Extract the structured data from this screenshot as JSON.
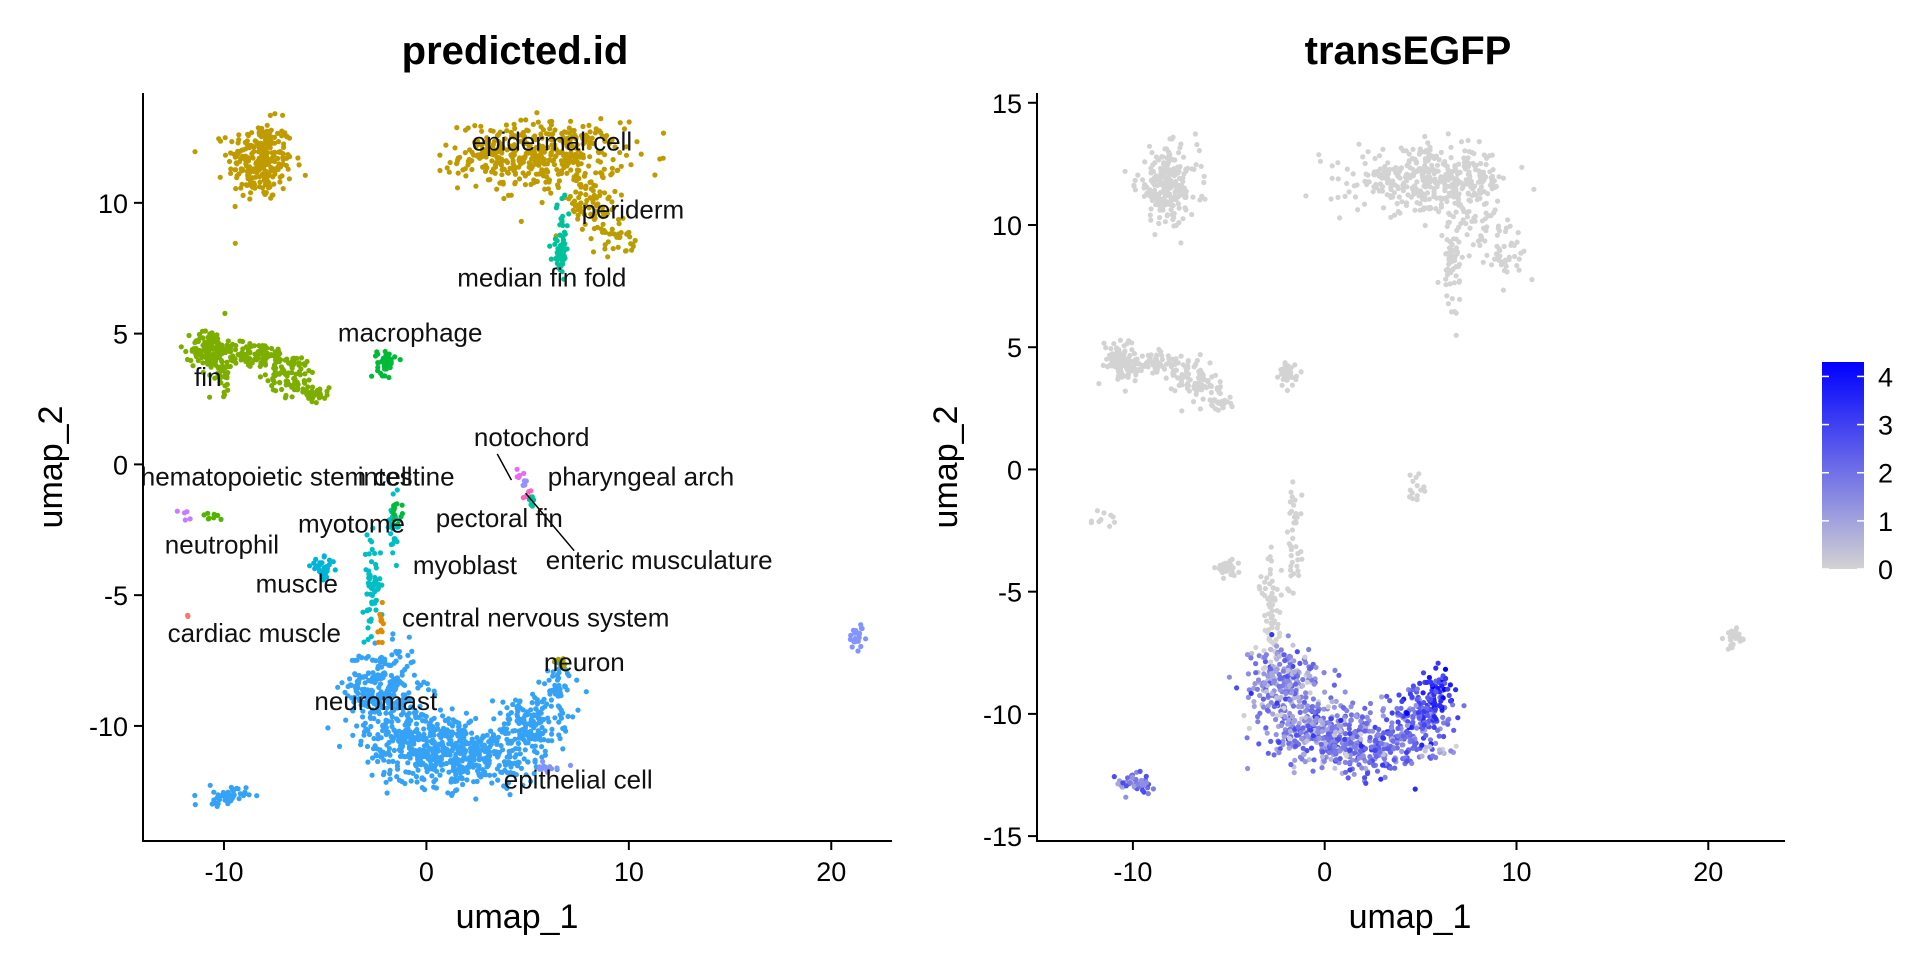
{
  "chart_data": [
    {
      "type": "scatter",
      "title": "predicted.id",
      "xlabel": "umap_1",
      "ylabel": "umap_2",
      "xlim": [
        -14,
        23
      ],
      "ylim": [
        -14.4,
        14.2
      ],
      "xticks": [
        -10,
        0,
        10,
        20
      ],
      "yticks": [
        -10,
        -5,
        0,
        5,
        10
      ],
      "legend": "none",
      "colors": {
        "epidermal": "#C09B00",
        "periderm": "#B79F00",
        "fin": "#7CAE00",
        "macrophage": "#00BA38",
        "median_fin_fold": "#00C19A",
        "myotome": "#00BFC4",
        "muscle": "#00B4D8",
        "myoblast": "#00A9FF",
        "neuromast": "#35A2F6",
        "epithelial": "#8494FF",
        "cardiac": "#F8766D",
        "hematopoietic": "#53B400",
        "neutrophil": "#C77CFF",
        "pharyngeal": "#E76BF3",
        "enteric": "#FF62BC",
        "cns": "#DE8C00",
        "neuron": "#A3A500",
        "notochord": "#9590FF",
        "intestine": "#00B0F6"
      },
      "clusters": [
        {
          "name": "epidermal",
          "color_key": "epidermal",
          "cx": -8.2,
          "cy": 11.6,
          "sx": 0.8,
          "sy": 0.75,
          "n": 260
        },
        {
          "name": "epidermal",
          "color_key": "epidermal",
          "cx": 5.7,
          "cy": 11.8,
          "sx": 2.0,
          "sy": 0.65,
          "n": 420
        },
        {
          "name": "epidermal",
          "color_key": "epidermal",
          "cx": 8.0,
          "cy": 9.9,
          "sx": 0.9,
          "sy": 0.55,
          "n": 70
        },
        {
          "name": "periderm",
          "color_key": "periderm",
          "cx": 9.3,
          "cy": 8.8,
          "sx": 0.5,
          "sy": 0.35,
          "n": 30
        },
        {
          "name": "epidermal",
          "color_key": "epidermal",
          "cx": 3.0,
          "cy": 12.0,
          "sx": 0.6,
          "sy": 0.25,
          "n": 30
        },
        {
          "name": "median fin fold",
          "color_key": "median_fin_fold",
          "cx": 6.6,
          "cy": 8.0,
          "sx": 0.2,
          "sy": 0.35,
          "n": 40
        },
        {
          "name": "median fin fold",
          "color_key": "median_fin_fold",
          "cx": 6.7,
          "cy": 9.2,
          "sx": 0.15,
          "sy": 0.6,
          "n": 20
        },
        {
          "name": "fin",
          "color_key": "fin",
          "cx": -10.7,
          "cy": 4.4,
          "sx": 0.45,
          "sy": 0.4,
          "n": 110
        },
        {
          "name": "fin",
          "color_key": "fin",
          "cx": -8.6,
          "cy": 4.2,
          "sx": 1.0,
          "sy": 0.25,
          "n": 110
        },
        {
          "name": "fin",
          "color_key": "fin",
          "cx": -6.6,
          "cy": 3.4,
          "sx": 0.6,
          "sy": 0.4,
          "n": 80
        },
        {
          "name": "fin",
          "color_key": "fin",
          "cx": -10.1,
          "cy": 3.4,
          "sx": 0.3,
          "sy": 0.35,
          "n": 30
        },
        {
          "name": "fin",
          "color_key": "fin",
          "cx": -5.4,
          "cy": 2.7,
          "sx": 0.3,
          "sy": 0.15,
          "n": 30
        },
        {
          "name": "macrophage",
          "color_key": "macrophage",
          "cx": -2.0,
          "cy": 3.9,
          "sx": 0.22,
          "sy": 0.25,
          "n": 40
        },
        {
          "name": "myotome",
          "color_key": "myotome",
          "cx": -1.6,
          "cy": -2.4,
          "sx": 0.15,
          "sy": 0.55,
          "n": 30
        },
        {
          "name": "myotome",
          "color_key": "myotome",
          "cx": -2.7,
          "cy": -4.6,
          "sx": 0.22,
          "sy": 0.9,
          "n": 60
        },
        {
          "name": "muscle",
          "color_key": "muscle",
          "cx": -5.1,
          "cy": -4.0,
          "sx": 0.3,
          "sy": 0.2,
          "n": 30
        },
        {
          "name": "neuromast",
          "color_key": "neuromast",
          "cx": -2.2,
          "cy": -8.6,
          "sx": 0.9,
          "sy": 0.8,
          "n": 260
        },
        {
          "name": "neuromast",
          "color_key": "neuromast",
          "cx": -0.4,
          "cy": -10.6,
          "sx": 1.3,
          "sy": 0.75,
          "n": 300
        },
        {
          "name": "neuromast",
          "color_key": "neuromast",
          "cx": 2.3,
          "cy": -11.2,
          "sx": 1.6,
          "sy": 0.55,
          "n": 300
        },
        {
          "name": "neuromast",
          "color_key": "neuromast",
          "cx": 5.0,
          "cy": -10.0,
          "sx": 0.8,
          "sy": 0.6,
          "n": 160
        },
        {
          "name": "neuromast",
          "color_key": "neuromast",
          "cx": 6.6,
          "cy": -8.6,
          "sx": 0.35,
          "sy": 0.6,
          "n": 50
        },
        {
          "name": "neuromast",
          "color_key": "neuromast",
          "cx": -9.9,
          "cy": -12.7,
          "sx": 0.5,
          "sy": 0.18,
          "n": 50
        },
        {
          "name": "epithelial cell",
          "color_key": "epithelial",
          "cx": 21.3,
          "cy": -6.6,
          "sx": 0.25,
          "sy": 0.22,
          "n": 25
        },
        {
          "name": "epithelial cell",
          "color_key": "epithelial",
          "cx": 6.0,
          "cy": -11.6,
          "sx": 0.5,
          "sy": 0.12,
          "n": 14
        },
        {
          "name": "neuron",
          "color_key": "neuron",
          "cx": 6.7,
          "cy": -7.5,
          "sx": 0.15,
          "sy": 0.12,
          "n": 8
        },
        {
          "name": "central nervous system",
          "color_key": "cns",
          "cx": -2.3,
          "cy": -6.2,
          "sx": 0.12,
          "sy": 0.45,
          "n": 12
        },
        {
          "name": "cardiac muscle",
          "color_key": "cardiac",
          "cx": -11.8,
          "cy": -5.8,
          "sx": 0.05,
          "sy": 0.05,
          "n": 2
        },
        {
          "name": "hematopoietic stem cell",
          "color_key": "hematopoietic",
          "cx": -10.6,
          "cy": -2.0,
          "sx": 0.25,
          "sy": 0.1,
          "n": 8
        },
        {
          "name": "neutrophil",
          "color_key": "neutrophil",
          "cx": -12.0,
          "cy": -2.0,
          "sx": 0.15,
          "sy": 0.12,
          "n": 5
        },
        {
          "name": "intestine",
          "color_key": "macrophage",
          "cx": -1.5,
          "cy": -1.8,
          "sx": 0.15,
          "sy": 0.2,
          "n": 12
        },
        {
          "name": "pharyngeal arch",
          "color_key": "pharyngeal",
          "cx": 4.6,
          "cy": -0.4,
          "sx": 0.15,
          "sy": 0.1,
          "n": 6
        },
        {
          "name": "enteric musculature",
          "color_key": "enteric",
          "cx": 5.0,
          "cy": -1.1,
          "sx": 0.15,
          "sy": 0.12,
          "n": 5
        },
        {
          "name": "notochord",
          "color_key": "notochord",
          "cx": 4.9,
          "cy": -0.6,
          "sx": 0.12,
          "sy": 0.1,
          "n": 4
        },
        {
          "name": "pectoral fin",
          "color_key": "median_fin_fold",
          "cx": 5.2,
          "cy": -1.4,
          "sx": 0.12,
          "sy": 0.1,
          "n": 5
        },
        {
          "name": "periderm",
          "color_key": "periderm",
          "cx": 10.2,
          "cy": 8.3,
          "sx": 0.15,
          "sy": 0.15,
          "n": 6
        }
      ],
      "labels": [
        {
          "text": "epidermal cell",
          "x": 6.2,
          "y": 12.0
        },
        {
          "text": "periderm",
          "x": 10.2,
          "y": 9.4
        },
        {
          "text": "median fin fold",
          "x": 5.7,
          "y": 6.8
        },
        {
          "text": "macrophage",
          "x": -0.8,
          "y": 4.7
        },
        {
          "text": "fin",
          "x": -10.8,
          "y": 3.0
        },
        {
          "text": "notochord",
          "x": 5.2,
          "y": 0.7
        },
        {
          "text": "hematopoietic stem cell",
          "x": -7.4,
          "y": -0.8
        },
        {
          "text": "intestine",
          "x": -1.0,
          "y": -0.8
        },
        {
          "text": "pharyngeal arch",
          "x": 10.6,
          "y": -0.8
        },
        {
          "text": "pectoral fin",
          "x": 3.6,
          "y": -2.4
        },
        {
          "text": "myotome",
          "x": -3.7,
          "y": -2.6
        },
        {
          "text": "neutrophil",
          "x": -10.1,
          "y": -3.4
        },
        {
          "text": "myoblast",
          "x": 1.9,
          "y": -4.2
        },
        {
          "text": "enteric musculature",
          "x": 11.5,
          "y": -4.0
        },
        {
          "text": "muscle",
          "x": -6.4,
          "y": -4.9
        },
        {
          "text": "central nervous system",
          "x": 5.4,
          "y": -6.2
        },
        {
          "text": "cardiac muscle",
          "x": -8.5,
          "y": -6.8
        },
        {
          "text": "neuron",
          "x": 7.8,
          "y": -7.9
        },
        {
          "text": "neuromast",
          "x": -2.5,
          "y": -9.4
        },
        {
          "text": "epithelial cell",
          "x": 7.5,
          "y": -12.4
        }
      ],
      "leaders": [
        {
          "x1": 4.2,
          "y1": -0.6,
          "x2": 3.5,
          "y2": 0.4
        },
        {
          "x1": 4.9,
          "y1": -1.1,
          "x2": 7.3,
          "y2": -3.3
        }
      ]
    },
    {
      "type": "scatter",
      "title": "transEGFP",
      "xlabel": "umap_1",
      "ylabel": "umap_2",
      "xlim": [
        -15,
        24
      ],
      "ylim": [
        -15.2,
        15.4
      ],
      "xticks": [
        -10,
        0,
        10,
        20
      ],
      "yticks": [
        -15,
        -10,
        -5,
        0,
        5,
        10,
        15
      ],
      "color_scale": {
        "min": 0,
        "max": 4.3,
        "low": "#D3D3D3",
        "high": "#0000FF",
        "ticks": [
          0,
          1,
          2,
          3,
          4
        ]
      },
      "legend": "right",
      "clusters": [
        {
          "cx": -8.2,
          "cy": 11.6,
          "sx": 0.8,
          "sy": 0.75,
          "n": 230,
          "expr": 0
        },
        {
          "cx": 5.7,
          "cy": 11.8,
          "sx": 2.0,
          "sy": 0.65,
          "n": 380,
          "expr": 0
        },
        {
          "cx": 8.0,
          "cy": 9.9,
          "sx": 0.9,
          "sy": 0.55,
          "n": 60,
          "expr": 0
        },
        {
          "cx": 6.6,
          "cy": 8.3,
          "sx": 0.25,
          "sy": 0.8,
          "n": 50,
          "expr": 0
        },
        {
          "cx": 9.5,
          "cy": 8.6,
          "sx": 0.5,
          "sy": 0.4,
          "n": 30,
          "expr": 0
        },
        {
          "cx": 3.0,
          "cy": 12.0,
          "sx": 0.6,
          "sy": 0.25,
          "n": 25,
          "expr": 0
        },
        {
          "cx": -10.7,
          "cy": 4.5,
          "sx": 0.45,
          "sy": 0.4,
          "n": 90,
          "expr": 0
        },
        {
          "cx": -8.6,
          "cy": 4.3,
          "sx": 1.0,
          "sy": 0.25,
          "n": 90,
          "expr": 0
        },
        {
          "cx": -6.6,
          "cy": 3.5,
          "sx": 0.6,
          "sy": 0.4,
          "n": 70,
          "expr": 0
        },
        {
          "cx": -5.4,
          "cy": 2.7,
          "sx": 0.3,
          "sy": 0.15,
          "n": 25,
          "expr": 0
        },
        {
          "cx": -1.9,
          "cy": 3.9,
          "sx": 0.22,
          "sy": 0.25,
          "n": 35,
          "expr": 0
        },
        {
          "cx": -1.6,
          "cy": -3.0,
          "sx": 0.2,
          "sy": 1.2,
          "n": 40,
          "expr": 0
        },
        {
          "cx": -2.8,
          "cy": -5.8,
          "sx": 0.3,
          "sy": 1.2,
          "n": 70,
          "expr": 0
        },
        {
          "cx": -5.1,
          "cy": -4.1,
          "sx": 0.3,
          "sy": 0.2,
          "n": 25,
          "expr": 0
        },
        {
          "cx": 4.8,
          "cy": -0.8,
          "sx": 0.3,
          "sy": 0.4,
          "n": 14,
          "expr": 0
        },
        {
          "cx": -11.6,
          "cy": -2.1,
          "sx": 0.4,
          "sy": 0.15,
          "n": 10,
          "expr": 0
        },
        {
          "cx": 21.3,
          "cy": -6.9,
          "sx": 0.25,
          "sy": 0.22,
          "n": 25,
          "expr": 0
        },
        {
          "cx": -2.2,
          "cy": -8.7,
          "sx": 0.9,
          "sy": 0.8,
          "n": 230,
          "expr": 1.4
        },
        {
          "cx": -0.4,
          "cy": -10.7,
          "sx": 1.3,
          "sy": 0.75,
          "n": 270,
          "expr": 1.6
        },
        {
          "cx": 2.3,
          "cy": -11.3,
          "sx": 1.6,
          "sy": 0.55,
          "n": 270,
          "expr": 1.9
        },
        {
          "cx": 5.0,
          "cy": -10.1,
          "sx": 0.8,
          "sy": 0.6,
          "n": 150,
          "expr": 2.4
        },
        {
          "cx": 5.9,
          "cy": -9.0,
          "sx": 0.35,
          "sy": 0.6,
          "n": 50,
          "expr": 3.3
        },
        {
          "cx": -10.0,
          "cy": -12.8,
          "sx": 0.5,
          "sy": 0.2,
          "n": 45,
          "expr": 1.8
        },
        {
          "cx": 6.3,
          "cy": -11.6,
          "sx": 0.5,
          "sy": 0.12,
          "n": 12,
          "expr": 0.6
        }
      ]
    }
  ]
}
